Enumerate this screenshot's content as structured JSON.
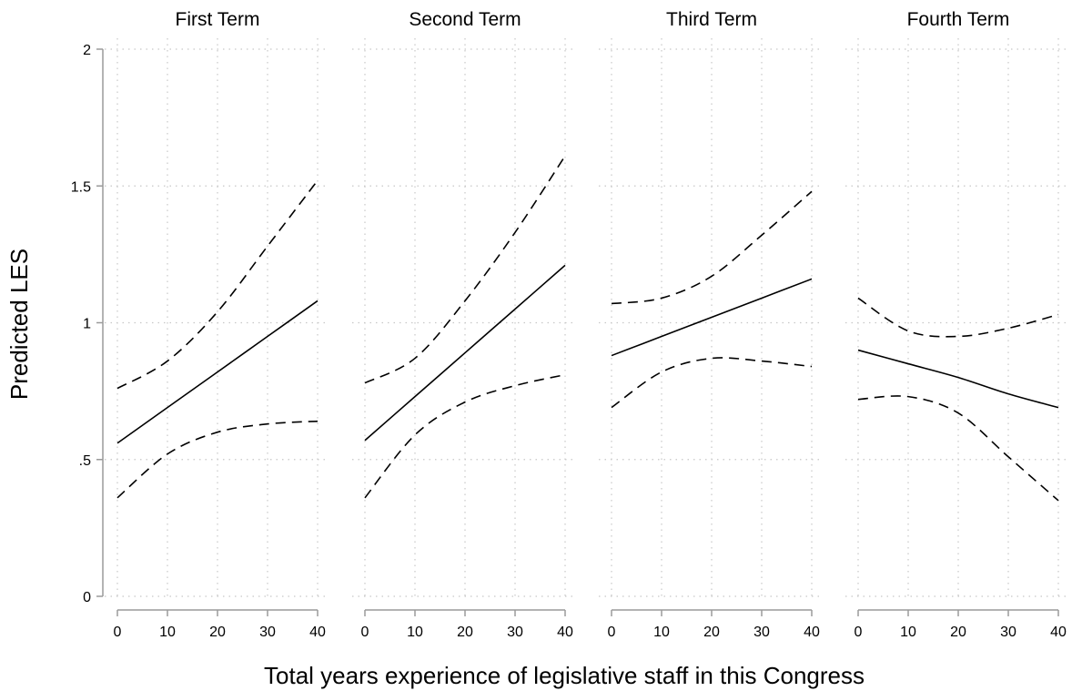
{
  "chart_data": {
    "type": "line",
    "ylabel": "Predicted LES",
    "xlabel": "Total years experience of legislative staff in this Congress",
    "ylim": [
      0,
      2
    ],
    "yticks": [
      0,
      0.5,
      1,
      1.5,
      2
    ],
    "ytick_labels": [
      "0",
      ".5",
      "1",
      "1.5",
      "2"
    ],
    "xlim": [
      0,
      40
    ],
    "xticks": [
      0,
      10,
      20,
      30,
      40
    ],
    "xtick_labels": [
      "0",
      "10",
      "20",
      "30",
      "40"
    ],
    "grid": true,
    "legend": "none",
    "series_styles": {
      "prediction": {
        "color": "#000000",
        "dash": "solid"
      },
      "ci": {
        "color": "#000000",
        "dash": "dashed"
      }
    },
    "panels": [
      {
        "title": "First Term",
        "x": [
          0,
          10,
          20,
          30,
          40
        ],
        "prediction": [
          0.56,
          0.69,
          0.82,
          0.95,
          1.08
        ],
        "ci_upper": [
          0.76,
          0.86,
          1.04,
          1.28,
          1.52
        ],
        "ci_lower": [
          0.36,
          0.52,
          0.6,
          0.63,
          0.64
        ]
      },
      {
        "title": "Second Term",
        "x": [
          0,
          10,
          20,
          30,
          40
        ],
        "prediction": [
          0.57,
          0.73,
          0.89,
          1.05,
          1.21
        ],
        "ci_upper": [
          0.78,
          0.87,
          1.08,
          1.33,
          1.61
        ],
        "ci_lower": [
          0.36,
          0.59,
          0.71,
          0.77,
          0.81
        ]
      },
      {
        "title": "Third Term",
        "x": [
          0,
          10,
          20,
          30,
          40
        ],
        "prediction": [
          0.88,
          0.95,
          1.02,
          1.09,
          1.16
        ],
        "ci_upper": [
          1.07,
          1.09,
          1.17,
          1.32,
          1.48
        ],
        "ci_lower": [
          0.69,
          0.82,
          0.87,
          0.86,
          0.84
        ]
      },
      {
        "title": "Fourth Term",
        "x": [
          0,
          10,
          20,
          30,
          40
        ],
        "prediction": [
          0.9,
          0.85,
          0.8,
          0.74,
          0.69
        ],
        "ci_upper": [
          1.09,
          0.97,
          0.95,
          0.98,
          1.03
        ],
        "ci_lower": [
          0.72,
          0.73,
          0.67,
          0.51,
          0.35
        ]
      }
    ]
  }
}
